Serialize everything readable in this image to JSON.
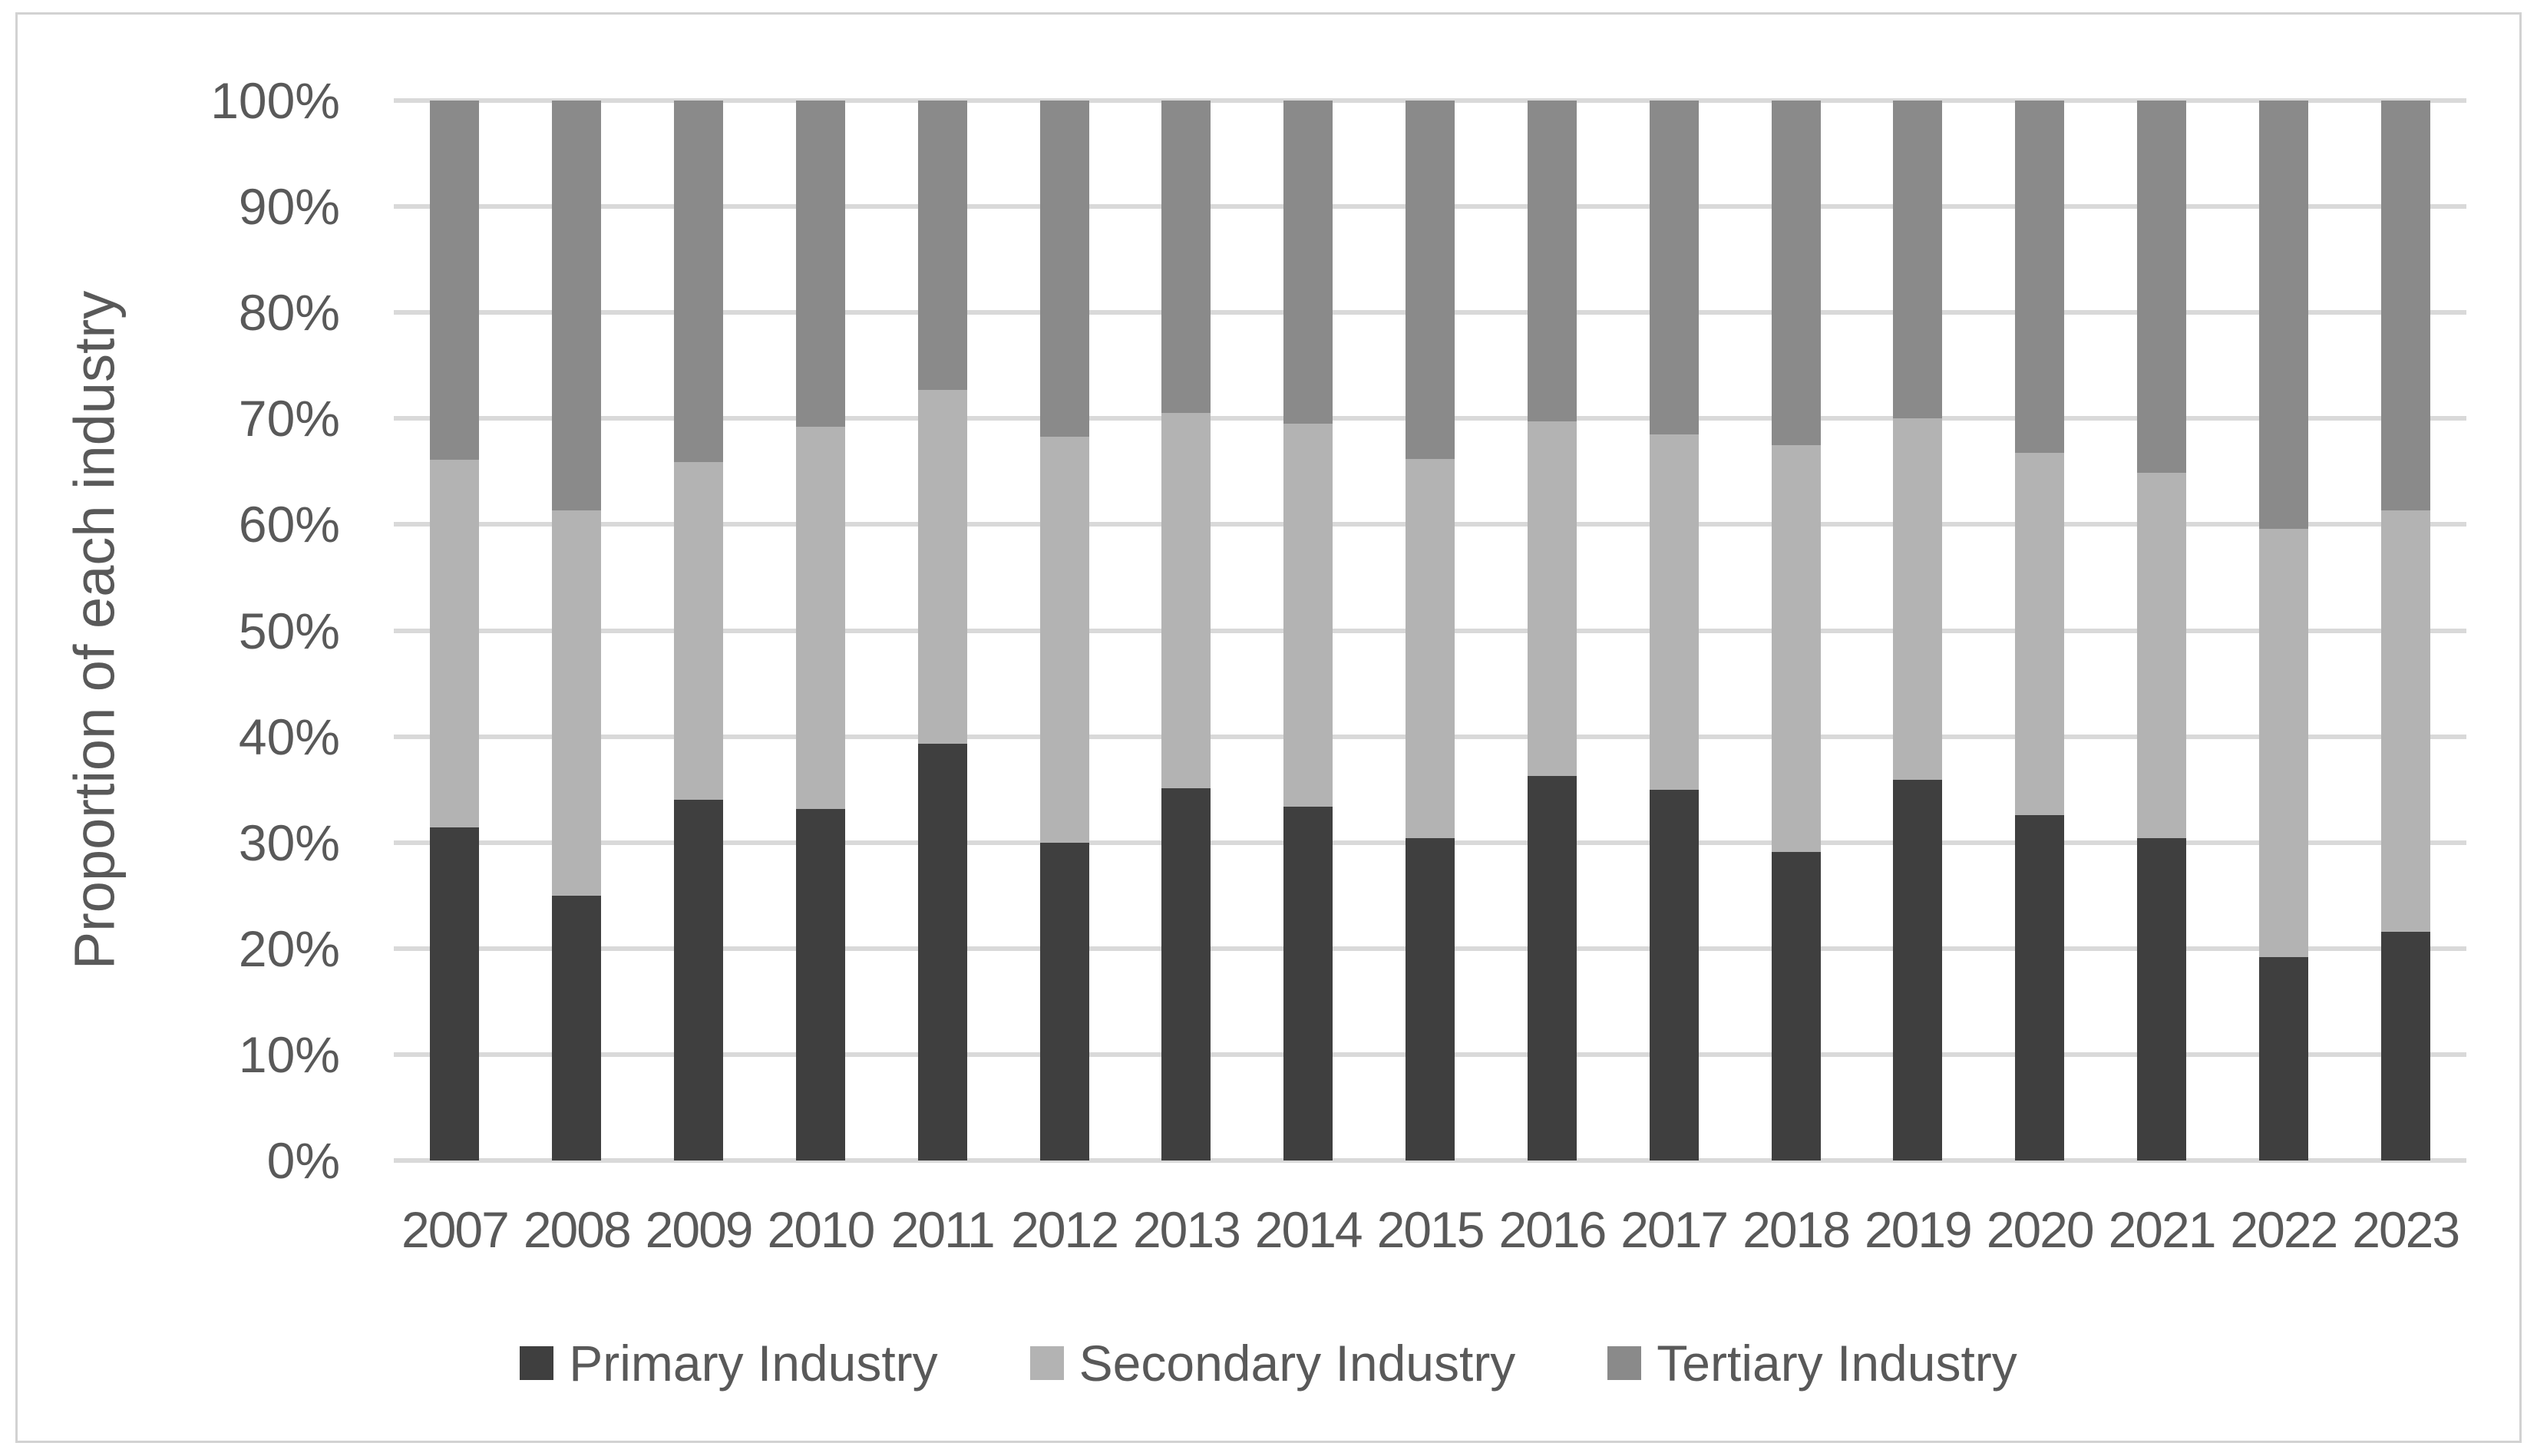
{
  "chart_data": {
    "type": "bar",
    "stacked": true,
    "stacked_100_percent": true,
    "title": "",
    "xlabel": "",
    "ylabel": "Proportion of each industry",
    "categories": [
      "2007",
      "2008",
      "2009",
      "2010",
      "2011",
      "2012",
      "2013",
      "2014",
      "2015",
      "2016",
      "2017",
      "2018",
      "2019",
      "2020",
      "2021",
      "2022",
      "2023"
    ],
    "series": [
      {
        "name": "Primary Industry",
        "color": "#3f3f3f",
        "values": [
          31.4,
          25.0,
          34.0,
          33.2,
          39.3,
          30.0,
          35.1,
          33.4,
          30.4,
          36.3,
          35.0,
          29.1,
          35.9,
          32.6,
          30.4,
          19.2,
          21.6
        ]
      },
      {
        "name": "Secondary Industry",
        "color": "#b3b3b3",
        "values": [
          34.7,
          36.3,
          31.9,
          36.0,
          33.4,
          38.3,
          35.4,
          36.1,
          35.8,
          33.4,
          33.5,
          38.4,
          34.1,
          34.2,
          34.5,
          40.4,
          39.7
        ]
      },
      {
        "name": "Tertiary Industry",
        "color": "#8a8a8a",
        "values": [
          33.9,
          38.7,
          34.1,
          30.8,
          27.3,
          31.7,
          29.5,
          30.5,
          33.8,
          30.3,
          31.5,
          32.5,
          30.0,
          33.2,
          35.1,
          40.4,
          38.7
        ]
      }
    ],
    "y_axis": {
      "min": 0,
      "max": 100,
      "step": 10,
      "tick_labels": [
        "0%",
        "10%",
        "20%",
        "30%",
        "40%",
        "50%",
        "60%",
        "70%",
        "80%",
        "90%",
        "100%"
      ],
      "grid": true
    },
    "legend_position": "bottom"
  },
  "colors": {
    "background": "#ffffff",
    "frame_border": "#d2d2d2",
    "gridline": "#d9d9d9",
    "axis_text": "#595959"
  }
}
